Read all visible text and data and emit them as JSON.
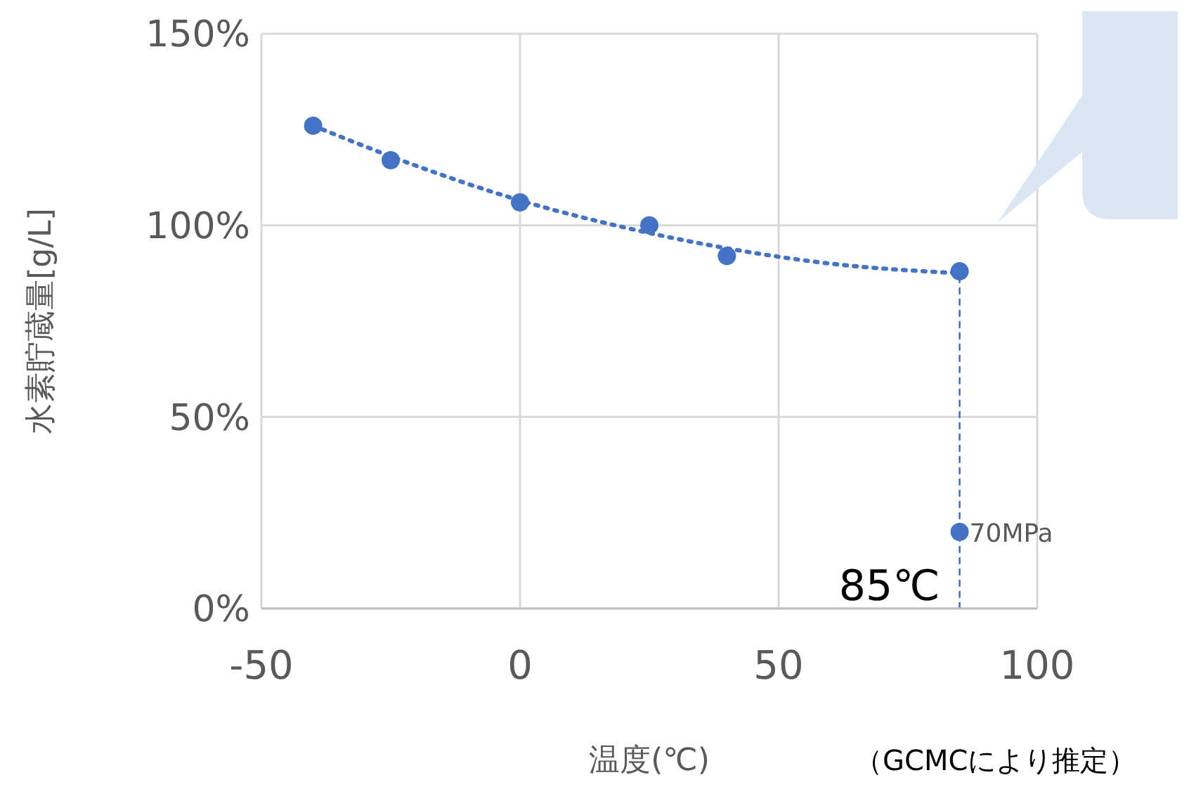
{
  "chart_data": {
    "type": "scatter",
    "xlabel": "温度(℃)",
    "ylabel": "水素貯蔵量[g/L]",
    "xlim": [
      -50,
      100
    ],
    "xticks": [
      -50,
      0,
      50,
      100
    ],
    "ylim": [
      0,
      150
    ],
    "yticks": [
      {
        "value": 0,
        "label": "0%"
      },
      {
        "value": 50,
        "label": "50%"
      },
      {
        "value": 100,
        "label": "100%"
      },
      {
        "value": 150,
        "label": "150%"
      }
    ],
    "grid": true,
    "marker": "circle",
    "series": [
      {
        "color": "#4472c4",
        "x": [
          -40,
          -25,
          0,
          25,
          40,
          85
        ],
        "values": [
          126,
          117,
          106,
          100,
          92,
          88
        ]
      },
      {
        "type": "line",
        "color": "#4472c4",
        "line_style": "dotted",
        "marker": "none",
        "x": [
          -40,
          -20,
          0,
          20,
          40,
          60,
          85
        ],
        "values": [
          126,
          115.5,
          106.5,
          99.5,
          94,
          90,
          87.5
        ]
      },
      {
        "type": "line",
        "color": "#4472c4",
        "line_style": "dashed",
        "marker": "none",
        "x": [
          85,
          85
        ],
        "values": [
          0,
          88
        ]
      },
      {
        "color": "#4472c4",
        "x": [
          85
        ],
        "values": [
          20
        ]
      }
    ],
    "annotations": [
      {
        "text": "85℃",
        "x": 85,
        "y": 0
      },
      {
        "text": "70MPa",
        "x": 85,
        "y": 20
      },
      "（GCMCにより推定）"
    ]
  }
}
